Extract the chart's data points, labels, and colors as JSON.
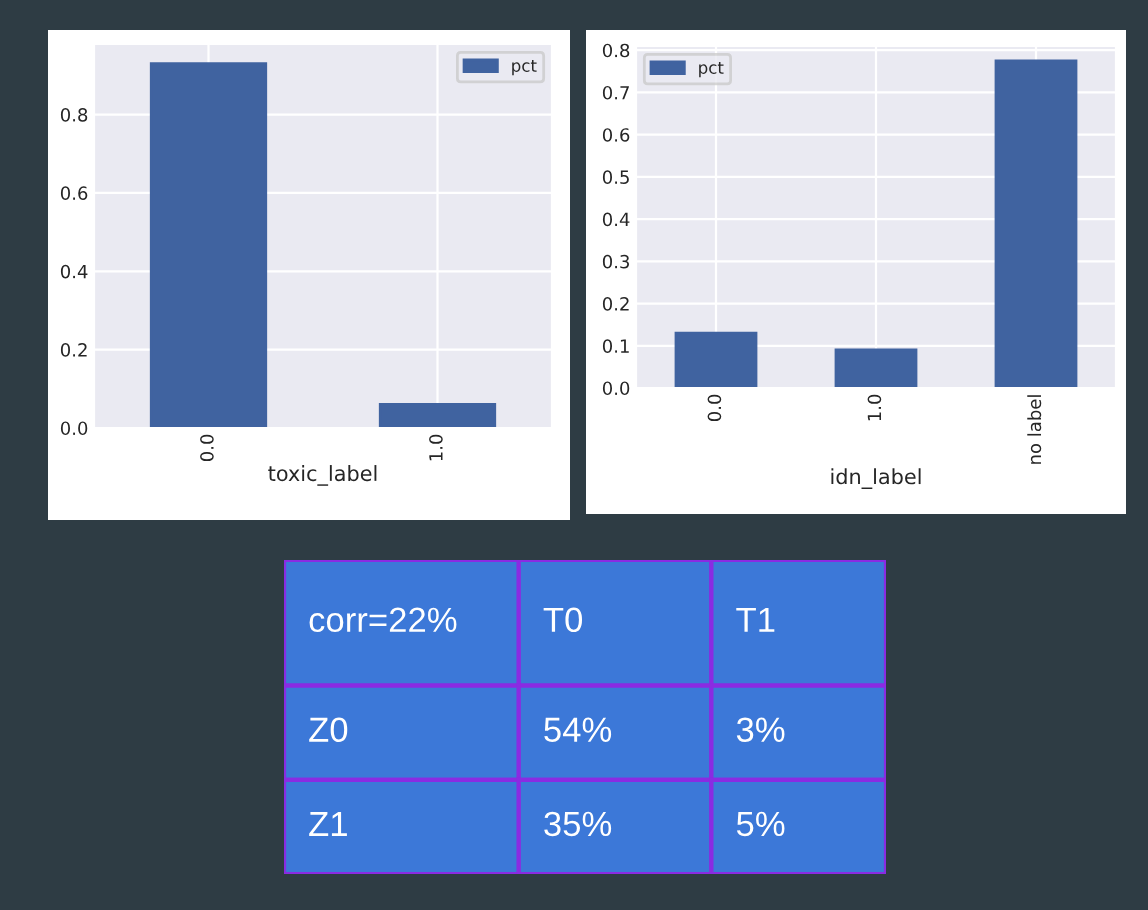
{
  "chart_data": [
    {
      "type": "bar",
      "xlabel": "toxic_label",
      "categories": [
        "0.0",
        "1.0"
      ],
      "series": [
        {
          "name": "pct",
          "color": "#4063a0",
          "values": [
            0.93,
            0.06
          ]
        }
      ],
      "ylim": [
        0,
        0.98
      ],
      "yticks": [
        {
          "value": 0,
          "label": "0.0"
        },
        0.2,
        0.4,
        0.6,
        0.8
      ],
      "grid": true,
      "legend": "top right"
    },
    {
      "type": "bar",
      "xlabel": "idn_label",
      "categories": [
        "0.0",
        "1.0",
        "no label"
      ],
      "series": [
        {
          "name": "pct",
          "color": "#4063a0",
          "values": [
            0.13,
            0.09,
            0.775
          ]
        }
      ],
      "ylim": [
        0,
        0.81
      ],
      "yticks": [
        {
          "value": 0,
          "label": "0.0"
        },
        0.1,
        0.2,
        0.3,
        0.4,
        0.5,
        0.6,
        0.7,
        0.8
      ],
      "grid": true,
      "legend": "top left"
    },
    {
      "type": "other",
      "color": "#3c78d8",
      "annotations": [
        "corr=22%",
        "T0",
        "T1",
        "Z0",
        "54%",
        "3%",
        "Z1",
        "35%",
        "5%"
      ]
    }
  ]
}
